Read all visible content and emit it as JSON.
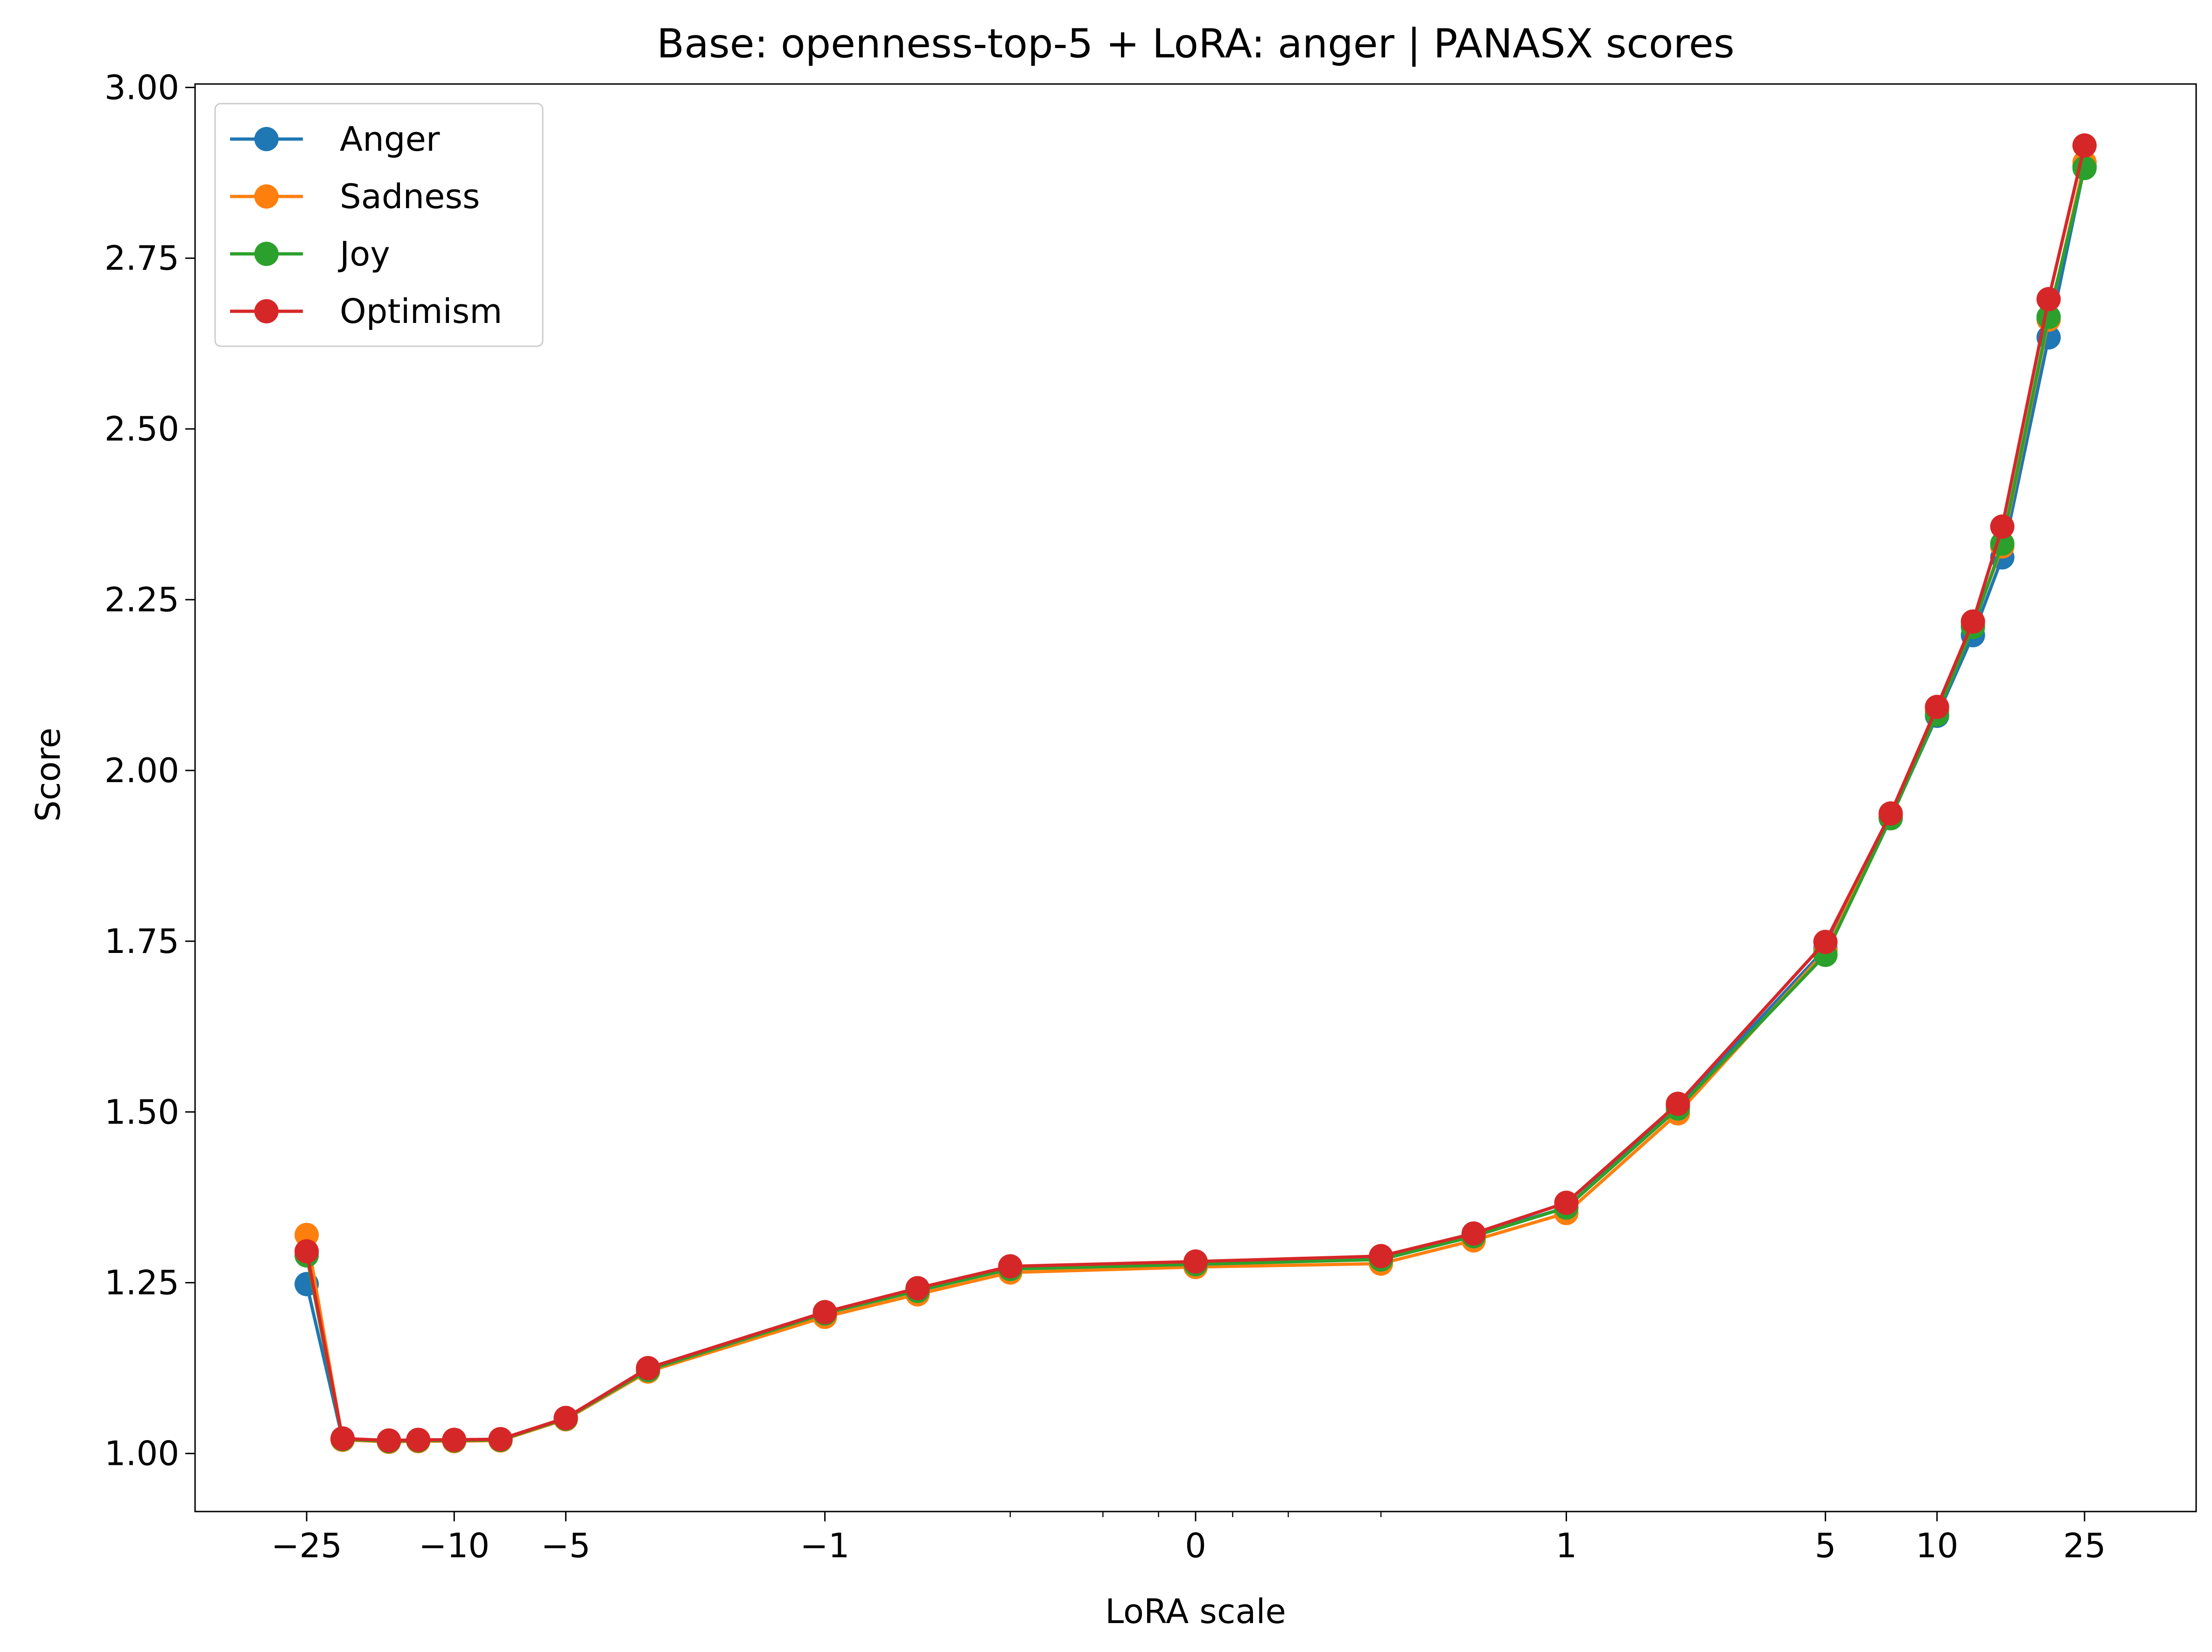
{
  "chart_data": {
    "type": "line",
    "title": "Base: openness-top-5 + LoRA: anger | PANASX scores",
    "xlabel": "LoRA scale",
    "ylabel": "Score",
    "xscale": "symlog",
    "x_ticks": [
      {
        "value": -25,
        "label": "−25"
      },
      {
        "value": -10,
        "label": "−10"
      },
      {
        "value": -5,
        "label": "−5"
      },
      {
        "value": -1,
        "label": "−1"
      },
      {
        "value": 0,
        "label": "0"
      },
      {
        "value": 1,
        "label": "1"
      },
      {
        "value": 5,
        "label": "5"
      },
      {
        "value": 10,
        "label": "10"
      },
      {
        "value": 25,
        "label": "25"
      }
    ],
    "x_minor_ticks": [
      -0.5,
      -0.25,
      -0.1,
      0.1,
      0.25,
      0.5
    ],
    "y_ticks": [
      1.0,
      1.25,
      1.5,
      1.75,
      2.0,
      2.25,
      2.5,
      2.75,
      3.0
    ],
    "y_tick_labels": [
      "1.00",
      "1.25",
      "1.50",
      "1.75",
      "2.00",
      "2.25",
      "2.50",
      "2.75",
      "3.00"
    ],
    "xlim": [
      -50,
      50
    ],
    "ylim": [
      0.915,
      3.005
    ],
    "grid": false,
    "legend_position": "top-left",
    "x": [
      -25,
      -20,
      -15,
      -12.5,
      -10,
      -7.5,
      -5,
      -3,
      -1,
      -0.75,
      -0.5,
      0,
      0.5,
      0.75,
      1,
      2,
      5,
      7.5,
      10,
      12.5,
      15,
      20,
      25
    ],
    "series": [
      {
        "name": "Anger",
        "color": "#1f77b4",
        "values": [
          1.248,
          1.021,
          1.018,
          1.019,
          1.019,
          1.02,
          1.052,
          1.124,
          1.206,
          1.24,
          1.272,
          1.28,
          1.287,
          1.32,
          1.36,
          1.508,
          1.739,
          1.931,
          2.08,
          2.198,
          2.312,
          2.634,
          2.885
        ]
      },
      {
        "name": "Sadness",
        "color": "#ff7f0e",
        "values": [
          1.32,
          1.02,
          1.017,
          1.018,
          1.018,
          1.019,
          1.05,
          1.12,
          1.2,
          1.233,
          1.265,
          1.273,
          1.278,
          1.312,
          1.352,
          1.498,
          1.735,
          1.932,
          2.088,
          2.212,
          2.328,
          2.66,
          2.89
        ]
      },
      {
        "name": "Joy",
        "color": "#2ca02c",
        "values": [
          1.29,
          1.021,
          1.018,
          1.019,
          1.019,
          1.02,
          1.051,
          1.122,
          1.205,
          1.238,
          1.27,
          1.277,
          1.284,
          1.318,
          1.36,
          1.505,
          1.73,
          1.93,
          2.082,
          2.21,
          2.332,
          2.664,
          2.882
        ]
      },
      {
        "name": "Optimism",
        "color": "#d62728",
        "values": [
          1.296,
          1.022,
          1.019,
          1.02,
          1.02,
          1.021,
          1.052,
          1.125,
          1.207,
          1.242,
          1.274,
          1.281,
          1.289,
          1.322,
          1.367,
          1.512,
          1.749,
          1.937,
          2.093,
          2.218,
          2.357,
          2.69,
          2.915
        ]
      }
    ]
  }
}
